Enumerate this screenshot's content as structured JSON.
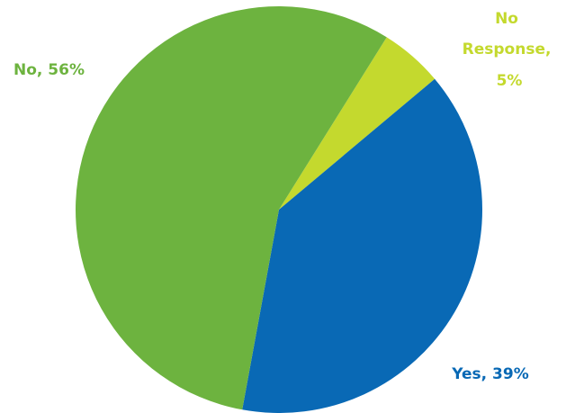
{
  "chart_data": {
    "type": "pie",
    "slices": [
      {
        "label": "Yes",
        "value": 39,
        "display": "Yes, 39%",
        "color": "#0969b5"
      },
      {
        "label": "No",
        "value": 56,
        "display": "No, 56%",
        "color": "#6db33f"
      },
      {
        "label": "No Response",
        "value": 5,
        "display": [
          "No",
          "Response,",
          "5%"
        ],
        "color": "#c4d92e"
      }
    ]
  }
}
